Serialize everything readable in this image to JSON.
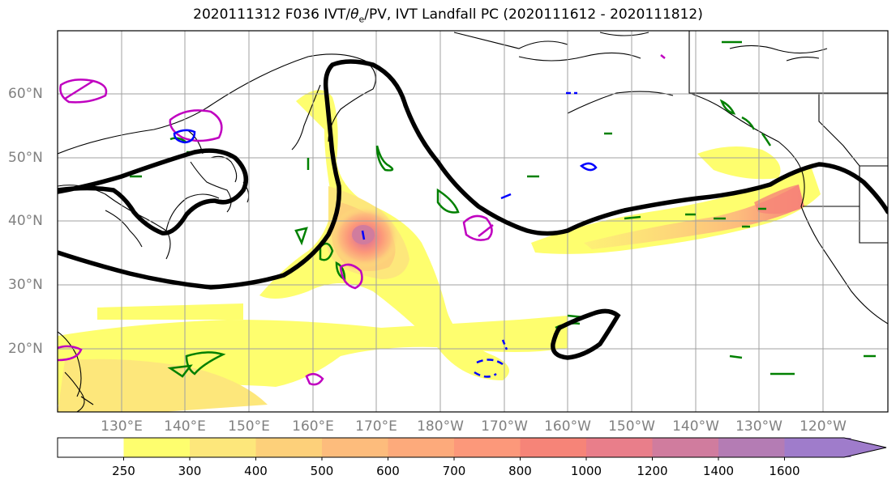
{
  "title": "2020111312 F036 IVT/θe/PV, IVT Landfall PC (2020111612 - 2020111812)",
  "title_parts": {
    "pre": "2020111312 F036 IVT/",
    "theta": "θ",
    "sub": "e",
    "post": "/PV, IVT Landfall PC (2020111612 - 2020111812)"
  },
  "map": {
    "lat_labels": [
      "60°N",
      "50°N",
      "40°N",
      "30°N",
      "20°N"
    ],
    "lon_labels": [
      "130°E",
      "140°E",
      "150°E",
      "160°E",
      "170°E",
      "180°W",
      "170°W",
      "160°W",
      "150°W",
      "140°W",
      "130°W",
      "120°W"
    ],
    "land_color": "#ffffff",
    "coastline_color": "#000000",
    "grid_color": "#a0a0a0"
  },
  "colorbar": {
    "labels": [
      "250",
      "300",
      "400",
      "500",
      "600",
      "700",
      "800",
      "1000",
      "1200",
      "1400",
      "1600"
    ],
    "colors": [
      "#ffffff",
      "#fefe6e",
      "#fde77b",
      "#fdd07a",
      "#fdbc7c",
      "#fdaa7b",
      "#fc987a",
      "#f68478",
      "#e97e8a",
      "#d07c9e",
      "#b47cb4",
      "#9f7ccb"
    ]
  },
  "legend_colors": {
    "ivt_pc_contour": "#000000",
    "pv_contour_green": "#008000",
    "pv_contour_magenta": "#c000c0",
    "pv_contour_blue": "#0000ff"
  }
}
